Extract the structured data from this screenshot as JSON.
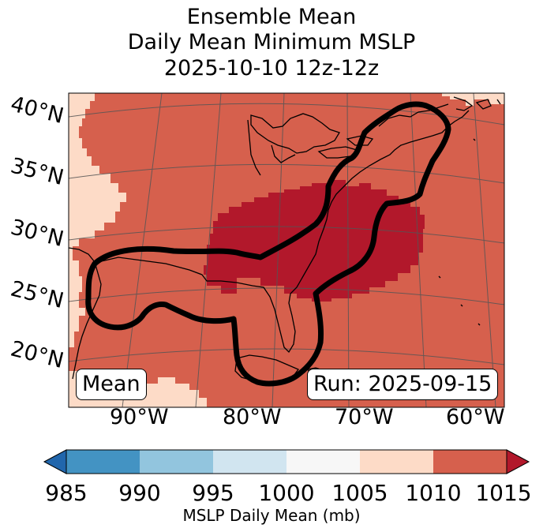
{
  "title": {
    "line1": "Ensemble Mean",
    "line2": "Daily Mean Minimum MSLP",
    "line3": "2025-10-10 12z-12z"
  },
  "map": {
    "latitude_labels": [
      "40°N",
      "35°N",
      "30°N",
      "25°N",
      "20°N"
    ],
    "longitude_labels": [
      "90°W",
      "80°W",
      "70°W",
      "60°W"
    ],
    "mean_box": "Mean",
    "run_box": "Run: 2025-09-15",
    "contour_icon": "black-contour-outline",
    "field_colors": {
      "lt_985": "#2166ac",
      "985_990": "#4393c3",
      "990_995": "#92c5de",
      "995_1000": "#d1e5f0",
      "1000_1005": "#f7f7f7",
      "1005_1010": "#fddbc7",
      "1010_1015": "#d6604d",
      "gt_1015": "#b2182b"
    }
  },
  "colorbar": {
    "ticks": [
      "985",
      "990",
      "995",
      "1000",
      "1005",
      "1010",
      "1015"
    ],
    "label": "MSLP Daily Mean (mb)",
    "colors": [
      "#2166ac",
      "#4393c3",
      "#92c5de",
      "#d1e5f0",
      "#f7f7f7",
      "#fddbc7",
      "#d6604d",
      "#b2182b"
    ]
  }
}
